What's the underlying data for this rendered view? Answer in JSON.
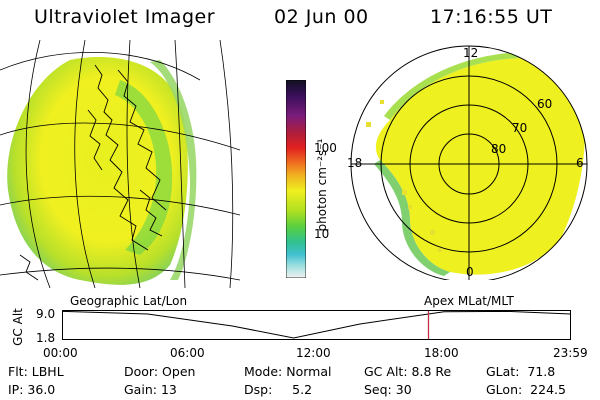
{
  "header": {
    "title": "Ultraviolet Imager",
    "date": "02 Jun 00",
    "time": "17:16:55 UT"
  },
  "colorbar": {
    "unit_label": "photon cm⁻²s⁻¹",
    "ticks": [
      "100",
      "10"
    ],
    "colors": [
      "#101020",
      "#3a0f5a",
      "#7a1c7c",
      "#b01f3a",
      "#e02020",
      "#f07020",
      "#f0b020",
      "#f0f020",
      "#b0e020",
      "#5ad040",
      "#30c090",
      "#40c0d0",
      "#a0e0e0",
      "#f0f0f0"
    ]
  },
  "map_left": {
    "projection": "geographic"
  },
  "polar": {
    "labels": {
      "top": "12",
      "left": "18",
      "right": "6",
      "bottom": "0"
    },
    "rings": [
      "60",
      "70",
      "80"
    ]
  },
  "timeline": {
    "left_label": "Geographic Lat/Lon",
    "right_label": "Apex MLat/MLT",
    "axis_label": "GC Alt",
    "y_ticks": [
      "9.0",
      "1.8"
    ],
    "x_ticks": [
      "00:00",
      "06:00",
      "12:00",
      "18:00",
      "23:59"
    ],
    "marker_time": "17:16",
    "curve": {
      "t": [
        0,
        4,
        8,
        10.9,
        14,
        18,
        21,
        23.98
      ],
      "alt": [
        8.9,
        8.2,
        5.0,
        1.8,
        5.5,
        8.8,
        8.9,
        8.2
      ]
    }
  },
  "info": {
    "flt_label": "Flt:",
    "flt_value": "LBHL",
    "ip_label": "IP:",
    "ip_value": "36.0",
    "door_label": "Door:",
    "door_value": "Open",
    "gain_label": "Gain:",
    "gain_value": "13",
    "mode_label": "Mode:",
    "mode_value": "Normal",
    "dsp_label": "Dsp:",
    "dsp_value": "5.2",
    "gcalt_label": "GC Alt:",
    "gcalt_value": "8.8 Re",
    "seq_label": "Seq:",
    "seq_value": "30",
    "glat_label": "GLat:",
    "glat_value": "71.8",
    "glon_label": "GLon:",
    "glon_value": "224.5"
  }
}
